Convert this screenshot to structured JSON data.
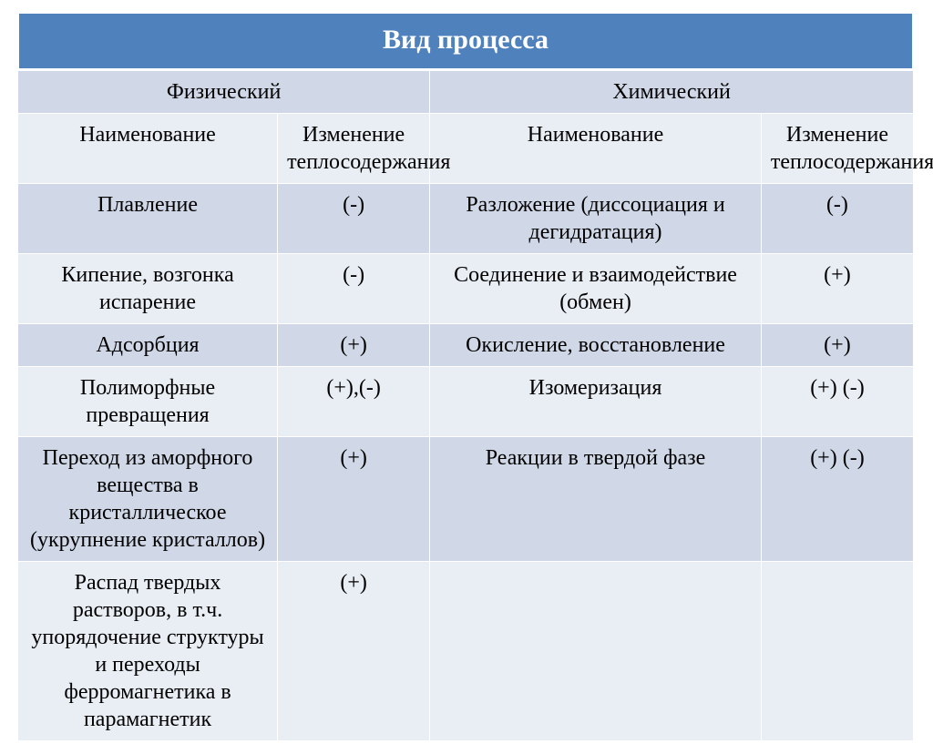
{
  "table": {
    "title": "Вид процесса",
    "group_headers": [
      "Физический",
      "Химический"
    ],
    "sub_headers": [
      "Наименование",
      "Изменение теплосодержания",
      "Наименование",
      "Изменение теплосодержания"
    ],
    "rows": [
      {
        "phys_name": "Плавление",
        "phys_sign": "(-)",
        "chem_name": "Разложение (диссоциация и дегидратация)",
        "chem_sign": "(-)"
      },
      {
        "phys_name": "Кипение, возгонка испарение",
        "phys_sign": "(-)",
        "chem_name": "Соединение и взаимодействие (обмен)",
        "chem_sign": "(+)"
      },
      {
        "phys_name": "Адсорбция",
        "phys_sign": "(+)",
        "chem_name": "Окисление, восстановление",
        "chem_sign": "(+)"
      },
      {
        "phys_name": "Полиморфные превращения",
        "phys_sign": "(+),(-)",
        "chem_name": "Изомеризация",
        "chem_sign": "(+) (-)"
      },
      {
        "phys_name": "Переход из аморфного вещества в кристаллическое (укрупнение кристаллов)",
        "phys_sign": "(+)",
        "chem_name": "Реакции в твердой фазе",
        "chem_sign": "(+) (-)"
      },
      {
        "phys_name": "Распад твердых растворов, в т.ч. упорядочение структуры и переходы ферромагнетика в парамагнетик",
        "phys_sign": "(+)",
        "chem_name": "",
        "chem_sign": ""
      }
    ],
    "colors": {
      "header_bg": "#4f81bd",
      "header_fg": "#ffffff",
      "band_a": "#d0d8e8",
      "band_b": "#e9edf4",
      "border": "#ffffff",
      "text": "#000000"
    },
    "fonts": {
      "title_size_pt": 22,
      "body_size_pt": 18,
      "family": "Times New Roman"
    }
  }
}
